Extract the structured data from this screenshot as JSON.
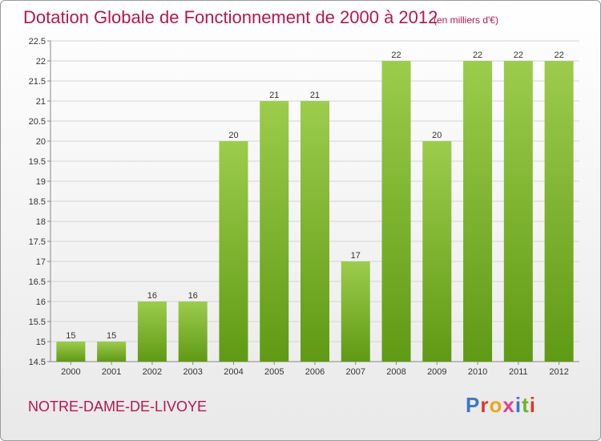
{
  "header": {
    "title": "Dotation Globale de Fonctionnement de 2000 à 2012",
    "unit": "(en milliers d'€)"
  },
  "footer": {
    "commune": "NOTRE-DAME-DE-LIVOYE",
    "logo_text": "Proxiti"
  },
  "colors": {
    "bar_light": "#9ccc4c",
    "bar_dark": "#5f9a14",
    "title": "#b5174f",
    "logo": [
      "#3a79c4",
      "#d93a2b",
      "#f2a516",
      "#e0428f",
      "#3a79c4",
      "#6bb52a",
      "#d93a2b"
    ]
  },
  "chart_data": {
    "type": "bar",
    "title": "Dotation Globale de Fonctionnement de 2000 à 2012",
    "xlabel": "",
    "ylabel": "",
    "categories": [
      "2000",
      "2001",
      "2002",
      "2003",
      "2004",
      "2005",
      "2006",
      "2007",
      "2008",
      "2009",
      "2010",
      "2011",
      "2012"
    ],
    "values": [
      15,
      15,
      16,
      16,
      20,
      21,
      21,
      17,
      22,
      20,
      22,
      22,
      22
    ],
    "value_labels": [
      "15",
      "15",
      "16",
      "16",
      "20",
      "21",
      "21",
      "17",
      "22",
      "20",
      "22",
      "22",
      "22"
    ],
    "ylim": [
      14.5,
      22.5
    ],
    "yticks": [
      14.5,
      15,
      15.5,
      16,
      16.5,
      17,
      17.5,
      18,
      18.5,
      19,
      19.5,
      20,
      20.5,
      21,
      21.5,
      22,
      22.5
    ],
    "ytick_labels": [
      "14.5",
      "15",
      "15.5",
      "16",
      "16.5",
      "17",
      "17.5",
      "18",
      "18.5",
      "19",
      "19.5",
      "20",
      "20.5",
      "21",
      "21.5",
      "22",
      "22.5"
    ],
    "grid": true,
    "legend": "none"
  }
}
